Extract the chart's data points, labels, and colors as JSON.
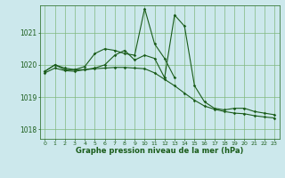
{
  "title": "Graphe pression niveau de la mer (hPa)",
  "bg_color": "#cce8ec",
  "grid_color": "#80b880",
  "line_color": "#1a5c1a",
  "xlim": [
    -0.5,
    23.5
  ],
  "ylim": [
    1017.7,
    1021.85
  ],
  "yticks": [
    1018,
    1019,
    1020,
    1021
  ],
  "xticks": [
    0,
    1,
    2,
    3,
    4,
    5,
    6,
    7,
    8,
    9,
    10,
    11,
    12,
    13,
    14,
    15,
    16,
    17,
    18,
    19,
    20,
    21,
    22,
    23
  ],
  "series1_y": [
    1019.8,
    1020.0,
    1019.9,
    1019.85,
    1019.85,
    1019.9,
    1020.0,
    1020.3,
    1020.45,
    1020.15,
    1020.3,
    1020.2,
    1019.6,
    1021.55,
    1021.2,
    1019.35,
    1018.85,
    1018.65,
    1018.6,
    1018.65,
    1018.65,
    1018.55,
    1018.5,
    1018.45
  ],
  "series2_y": [
    1019.8,
    1020.0,
    1019.85,
    1019.85,
    1019.95,
    1020.35,
    1020.5,
    1020.45,
    1020.35,
    1020.3,
    1021.75,
    1020.65,
    1020.2,
    1019.6,
    null,
    null,
    null,
    null,
    null,
    null,
    null,
    null,
    null,
    null
  ],
  "series3_y": [
    1019.75,
    1019.9,
    1019.82,
    1019.8,
    1019.85,
    1019.88,
    1019.9,
    1019.92,
    1019.92,
    1019.9,
    1019.88,
    1019.75,
    1019.55,
    1019.35,
    1019.12,
    1018.9,
    1018.72,
    1018.62,
    1018.55,
    1018.5,
    1018.48,
    1018.42,
    1018.38,
    1018.35
  ]
}
